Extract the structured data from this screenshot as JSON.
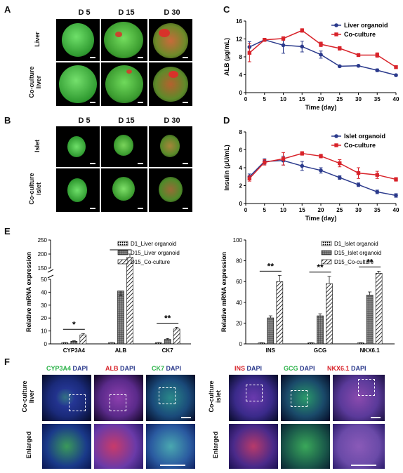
{
  "panels": {
    "A": {
      "label": "A",
      "columns": [
        "D 5",
        "D 15",
        "D 30"
      ],
      "rows": [
        "Liver",
        "Co-culture\nliver"
      ]
    },
    "B": {
      "label": "B",
      "columns": [
        "D 5",
        "D 15",
        "D 30"
      ],
      "rows": [
        "Islet",
        "Co-culture\nislet"
      ]
    },
    "C": {
      "label": "C"
    },
    "D": {
      "label": "D"
    },
    "E": {
      "label": "E"
    },
    "F": {
      "label": "F",
      "left_headers": [
        {
          "marker": "CYP3A4",
          "marker_color": "#2db34a",
          "counter": "DAPI"
        },
        {
          "marker": "ALB",
          "marker_color": "#d8232a",
          "counter": "DAPI"
        },
        {
          "marker": "CK7",
          "marker_color": "#2db34a",
          "counter": "DAPI"
        }
      ],
      "right_headers": [
        {
          "marker": "INS",
          "marker_color": "#d8232a",
          "counter": "DAPI"
        },
        {
          "marker": "GCG",
          "marker_color": "#2db34a",
          "counter": "DAPI"
        },
        {
          "marker": "NKX6.1",
          "marker_color": "#d8232a",
          "counter": "DAPI"
        }
      ],
      "left_rows": [
        "Co-culture\nliver",
        "Enlarged"
      ],
      "right_rows": [
        "Co-culture\nislet",
        "Enlarged"
      ]
    }
  },
  "chart_data": [
    {
      "id": "C",
      "type": "line",
      "xlabel": "Time (day)",
      "ylabel": "ALB (μg/mL)",
      "xlim": [
        0,
        40
      ],
      "ylim": [
        0,
        16
      ],
      "xticks": [
        0,
        5,
        10,
        15,
        20,
        25,
        30,
        35,
        40
      ],
      "yticks": [
        0,
        4,
        8,
        12,
        16
      ],
      "legend": "top-right",
      "series": [
        {
          "name": "Liver organoid",
          "color": "#2b3a8c",
          "marker": "circle",
          "x": [
            1,
            5,
            10,
            15,
            20,
            25,
            30,
            35,
            40
          ],
          "y": [
            10.2,
            11.8,
            10.6,
            10.3,
            8.5,
            5.9,
            6.0,
            5.0,
            3.9
          ],
          "err": [
            1.2,
            0.3,
            1.8,
            1.2,
            0.8,
            0.2,
            0.2,
            0.3,
            0.2
          ]
        },
        {
          "name": "Co-culture",
          "color": "#d8232a",
          "marker": "square",
          "x": [
            1,
            5,
            10,
            15,
            20,
            25,
            30,
            35,
            40
          ],
          "y": [
            8.9,
            11.8,
            12.1,
            13.9,
            10.8,
            9.9,
            8.4,
            8.4,
            5.7
          ],
          "err": [
            2.0,
            0.3,
            0.4,
            0.4,
            0.5,
            0.4,
            0.3,
            0.5,
            0.3
          ]
        }
      ]
    },
    {
      "id": "D",
      "type": "line",
      "xlabel": "Time (day)",
      "ylabel": "Insulin (μU/mL)",
      "xlim": [
        0,
        40
      ],
      "ylim": [
        0,
        8
      ],
      "xticks": [
        0,
        5,
        10,
        15,
        20,
        25,
        30,
        35,
        40
      ],
      "yticks": [
        0,
        2,
        4,
        6,
        8
      ],
      "legend": "top-right",
      "series": [
        {
          "name": "Islet organoid",
          "color": "#2b3a8c",
          "marker": "circle",
          "x": [
            1,
            5,
            10,
            15,
            20,
            25,
            30,
            35,
            40
          ],
          "y": [
            3.0,
            4.7,
            4.8,
            4.2,
            3.7,
            2.9,
            2.1,
            1.3,
            0.9
          ],
          "err": [
            0.3,
            0.3,
            0.5,
            0.5,
            0.3,
            0.2,
            0.2,
            0.2,
            0.2
          ]
        },
        {
          "name": "Co-culture",
          "color": "#d8232a",
          "marker": "square",
          "x": [
            1,
            5,
            10,
            15,
            20,
            25,
            30,
            35,
            40
          ],
          "y": [
            2.8,
            4.6,
            5.0,
            5.6,
            5.3,
            4.5,
            3.4,
            3.2,
            2.7
          ],
          "err": [
            0.3,
            0.3,
            0.7,
            0.2,
            0.2,
            0.4,
            0.6,
            0.4,
            0.2
          ]
        }
      ]
    },
    {
      "id": "E-left",
      "type": "bar",
      "ylabel": "Relative mRNA expression",
      "categories": [
        "CYP3A4",
        "ALB",
        "CK7"
      ],
      "yticks_lower": [
        0,
        10,
        20,
        30,
        40,
        50
      ],
      "yticks_upper": [
        150,
        200,
        250
      ],
      "broken_axis": true,
      "legend": "top-right",
      "series": [
        {
          "name": "D1_Liver organoid",
          "pattern": "dots",
          "values": [
            1,
            1,
            1
          ],
          "err": [
            0.1,
            0.1,
            0.1
          ]
        },
        {
          "name": "D15_Liver organoid",
          "pattern": "grid",
          "values": [
            2.0,
            41,
            3.5
          ],
          "err": [
            0.5,
            11,
            0.7
          ]
        },
        {
          "name": "D15_Co-culture",
          "pattern": "hatch",
          "values": [
            7.0,
            188,
            11.5
          ],
          "err": [
            1.0,
            12,
            1.3
          ]
        }
      ],
      "annotations": [
        {
          "category": "CYP3A4",
          "text": "*"
        },
        {
          "category": "ALB",
          "text": "**"
        },
        {
          "category": "CK7",
          "text": "**"
        }
      ]
    },
    {
      "id": "E-right",
      "type": "bar",
      "ylabel": "Relative mRNA expression",
      "categories": [
        "INS",
        "GCG",
        "NKX6.1"
      ],
      "ylim": [
        0,
        100
      ],
      "yticks": [
        0,
        20,
        40,
        60,
        80,
        100
      ],
      "legend": "top-right",
      "series": [
        {
          "name": "D1_Islet organoid",
          "pattern": "dots",
          "values": [
            1,
            1,
            1
          ],
          "err": [
            0.1,
            0.1,
            0.1
          ]
        },
        {
          "name": "D15_Islet organoid",
          "pattern": "grid",
          "values": [
            25,
            27,
            47
          ],
          "err": [
            2,
            2,
            3
          ]
        },
        {
          "name": "D15_Co-culture",
          "pattern": "hatch",
          "values": [
            60,
            58,
            68
          ],
          "err": [
            6,
            7,
            2
          ]
        }
      ],
      "annotations": [
        {
          "category": "INS",
          "text": "**"
        },
        {
          "category": "GCG",
          "text": "**"
        },
        {
          "category": "NKX6.1",
          "text": "**"
        }
      ]
    }
  ]
}
